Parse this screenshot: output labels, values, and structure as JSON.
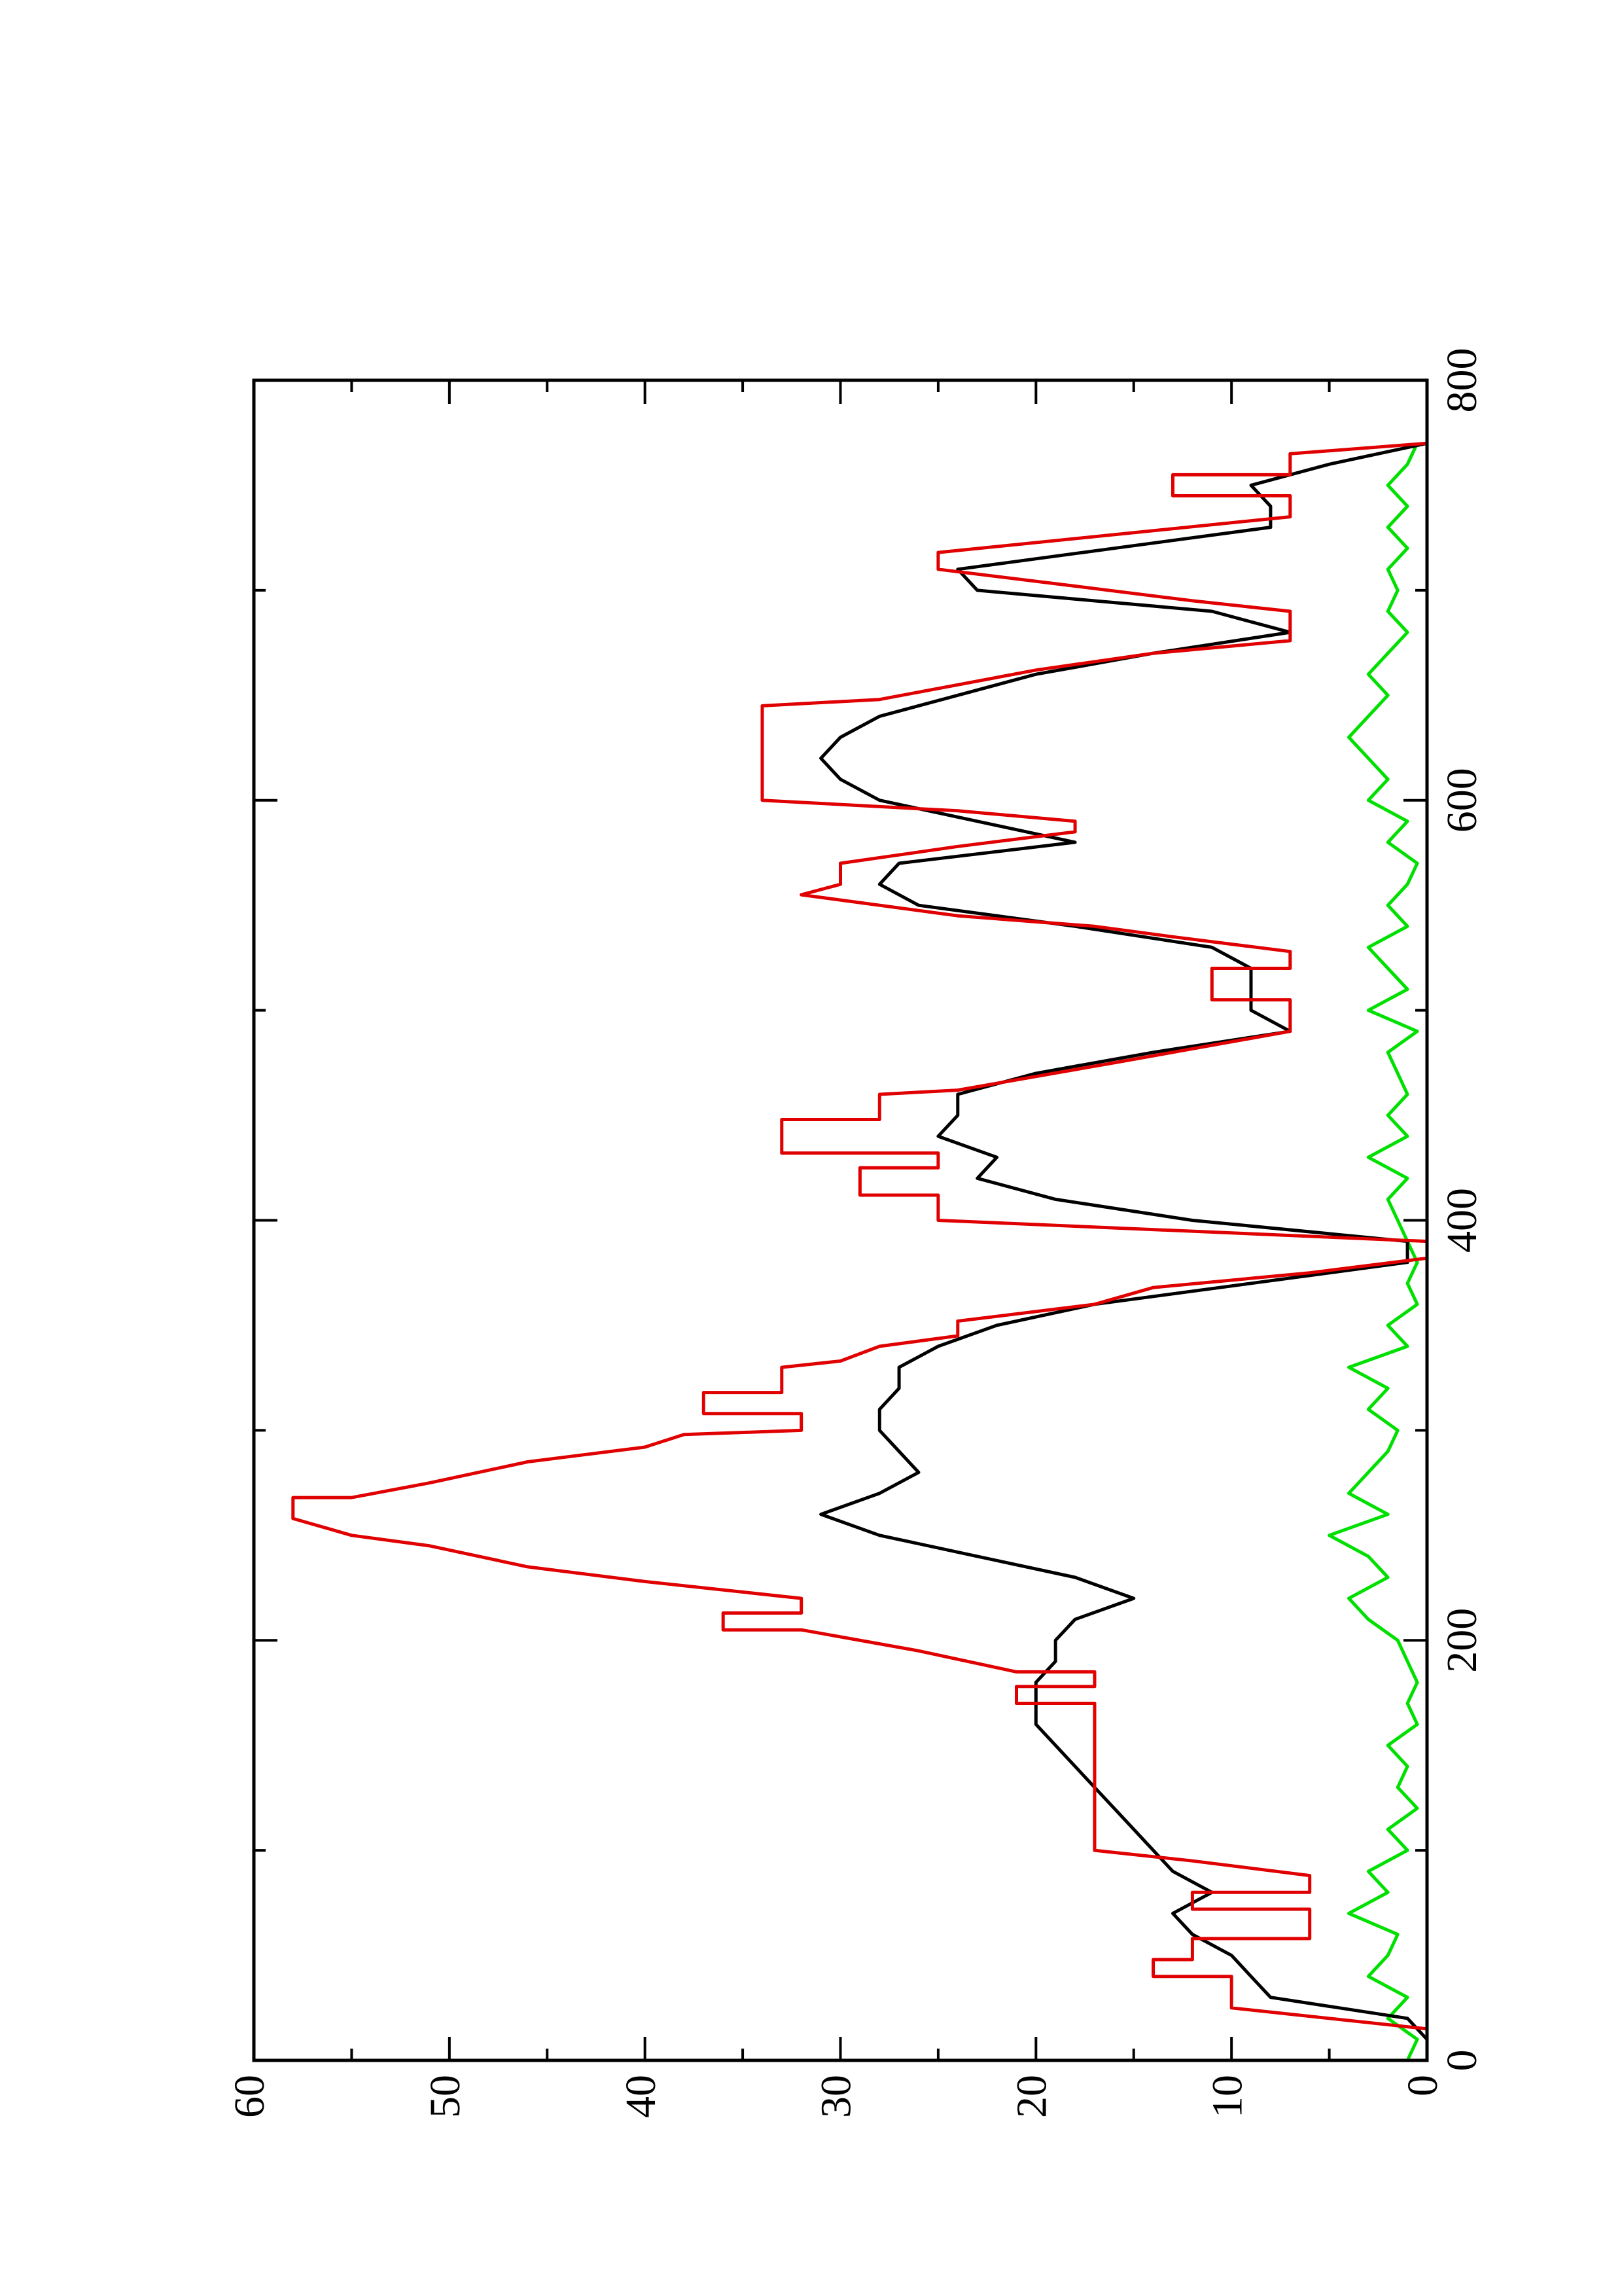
{
  "chart_data": {
    "type": "line",
    "xlim": [
      0,
      800
    ],
    "xticks": [
      0,
      200,
      400,
      600,
      800
    ],
    "ylim": [
      0,
      60
    ],
    "yticks": [
      0,
      10,
      20,
      30,
      40,
      50,
      60
    ],
    "rotated": true,
    "series": [
      {
        "color": "#00e000",
        "x": [
          0,
          10,
          20,
          30,
          40,
          50,
          60,
          70,
          80,
          90,
          100,
          110,
          120,
          130,
          140,
          150,
          160,
          170,
          180,
          190,
          200,
          210,
          220,
          230,
          240,
          250,
          260,
          270,
          280,
          290,
          300,
          310,
          320,
          330,
          340,
          350,
          360,
          370,
          380,
          390,
          400,
          410,
          420,
          430,
          440,
          450,
          460,
          470,
          480,
          490,
          500,
          510,
          520,
          530,
          540,
          550,
          560,
          570,
          580,
          590,
          600,
          610,
          620,
          630,
          640,
          650,
          660,
          670,
          680,
          690,
          700,
          710,
          720,
          730,
          740,
          750,
          760,
          770
        ],
        "values": [
          1,
          0.5,
          2,
          1,
          3,
          2,
          1.5,
          4,
          2,
          3,
          1,
          2,
          0.5,
          1.5,
          1,
          2,
          0.5,
          1,
          0.5,
          1,
          1.5,
          3,
          4,
          2,
          3,
          5,
          2,
          4,
          3,
          2,
          1.5,
          3,
          2,
          4,
          1,
          2,
          0.5,
          1,
          0.5,
          1,
          1.5,
          2,
          1,
          3,
          1,
          2,
          1,
          1.5,
          2,
          0.5,
          3,
          1,
          2,
          3,
          1,
          2,
          1,
          0.5,
          2,
          1,
          3,
          2,
          3,
          4,
          3,
          2,
          3,
          2,
          1,
          2,
          1.5,
          2,
          1,
          2,
          1,
          2,
          1,
          0.5
        ]
      },
      {
        "color": "#000000",
        "x": [
          0,
          10,
          20,
          30,
          40,
          50,
          60,
          70,
          80,
          90,
          100,
          110,
          120,
          130,
          140,
          150,
          160,
          170,
          180,
          190,
          200,
          210,
          220,
          230,
          240,
          250,
          260,
          270,
          280,
          290,
          300,
          310,
          320,
          330,
          340,
          350,
          360,
          370,
          380,
          390,
          400,
          410,
          420,
          430,
          440,
          450,
          460,
          470,
          480,
          490,
          500,
          510,
          520,
          530,
          540,
          550,
          560,
          570,
          580,
          590,
          600,
          610,
          620,
          630,
          640,
          650,
          660,
          670,
          680,
          690,
          700,
          710,
          720,
          730,
          740,
          750,
          760,
          770
        ],
        "values": [
          0,
          0,
          1,
          8,
          9,
          10,
          12,
          13,
          11,
          13,
          14,
          15,
          16,
          17,
          18,
          19,
          20,
          20,
          20,
          19,
          19,
          18,
          15,
          18,
          23,
          28,
          31,
          28,
          26,
          27,
          28,
          28,
          27,
          27,
          25,
          22,
          17,
          9,
          1,
          1,
          12,
          19,
          23,
          22,
          25,
          24,
          24,
          20,
          14,
          7,
          9,
          9,
          9,
          11,
          18,
          26,
          28,
          27,
          18,
          23,
          28,
          30,
          31,
          30,
          28,
          24,
          20,
          14,
          7,
          11,
          23,
          24,
          16,
          8,
          8,
          9,
          5,
          0
        ]
      },
      {
        "color": "#e00000",
        "x": [
          0,
          15,
          25,
          40,
          40,
          48,
          48,
          58,
          58,
          72,
          72,
          80,
          80,
          88,
          95,
          100,
          170,
          170,
          178,
          178,
          185,
          185,
          195,
          205,
          205,
          213,
          213,
          220,
          228,
          235,
          245,
          250,
          258,
          268,
          268,
          275,
          285,
          292,
          298,
          300,
          308,
          308,
          318,
          318,
          330,
          333,
          340,
          345,
          352,
          360,
          368,
          375,
          382,
          390,
          400,
          412,
          412,
          425,
          425,
          432,
          432,
          448,
          448,
          460,
          462,
          475,
          490,
          505,
          505,
          520,
          520,
          528,
          535,
          540,
          545,
          555,
          560,
          570,
          578,
          585,
          590,
          595,
          600,
          645,
          648,
          655,
          662,
          670,
          676,
          690,
          695,
          702,
          710,
          718,
          735,
          745,
          745,
          755,
          755,
          765,
          770
        ],
        "values": [
          0,
          0,
          10,
          10,
          14,
          14,
          12,
          12,
          6,
          6,
          12,
          12,
          6,
          6,
          12,
          17,
          17,
          21,
          21,
          17,
          17,
          21,
          26,
          32,
          36,
          36,
          32,
          32,
          40,
          46,
          51,
          55,
          58,
          58,
          55,
          51,
          46,
          40,
          38,
          32,
          32,
          37,
          37,
          33,
          33,
          30,
          28,
          24,
          24,
          17,
          14,
          6,
          0,
          0,
          25,
          25,
          29,
          29,
          25,
          25,
          33,
          33,
          28,
          28,
          24,
          16,
          7,
          7,
          11,
          11,
          7,
          7,
          13,
          17,
          24,
          32,
          30,
          30,
          24,
          18,
          18,
          24,
          34,
          34,
          28,
          24,
          20,
          14,
          7,
          7,
          12,
          18,
          25,
          25,
          7,
          7,
          13,
          13,
          7,
          7,
          0
        ]
      }
    ]
  }
}
